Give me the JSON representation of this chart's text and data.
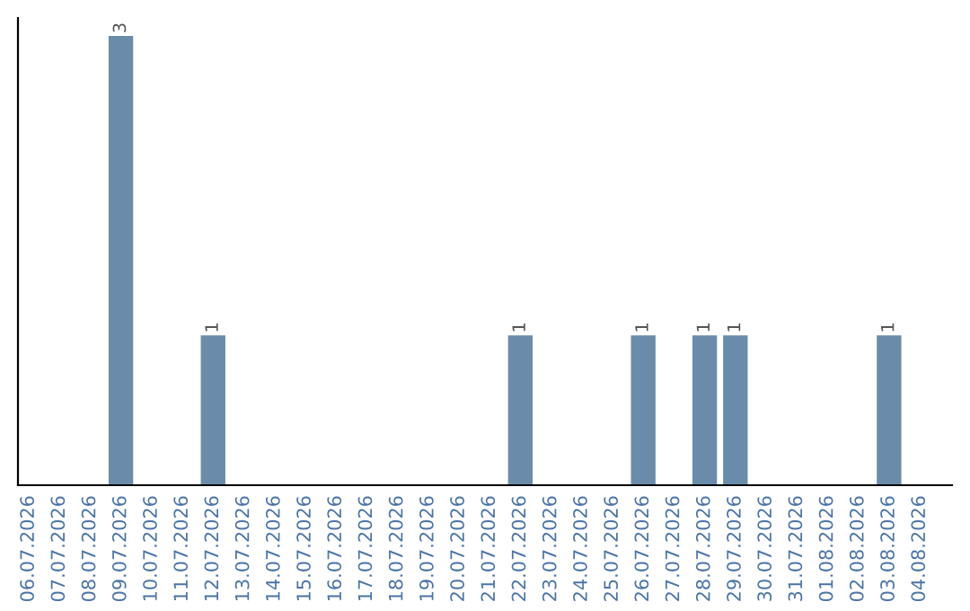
{
  "chart_data": {
    "type": "bar",
    "categories": [
      "06.07.2026",
      "07.07.2026",
      "08.07.2026",
      "09.07.2026",
      "10.07.2026",
      "11.07.2026",
      "12.07.2026",
      "13.07.2026",
      "14.07.2026",
      "15.07.2026",
      "16.07.2026",
      "17.07.2026",
      "18.07.2026",
      "19.07.2026",
      "20.07.2026",
      "21.07.2026",
      "22.07.2026",
      "23.07.2026",
      "24.07.2026",
      "25.07.2026",
      "26.07.2026",
      "27.07.2026",
      "28.07.2026",
      "29.07.2026",
      "30.07.2026",
      "31.07.2026",
      "01.08.2026",
      "02.08.2026",
      "03.08.2026",
      "04.08.2026"
    ],
    "values": [
      0,
      0,
      0,
      3,
      0,
      0,
      1,
      0,
      0,
      0,
      0,
      0,
      0,
      0,
      0,
      0,
      1,
      0,
      0,
      0,
      1,
      0,
      1,
      1,
      0,
      0,
      0,
      0,
      1,
      0
    ],
    "value_labels": [
      null,
      null,
      null,
      "3",
      null,
      null,
      "1",
      null,
      null,
      null,
      null,
      null,
      null,
      null,
      null,
      null,
      "1",
      null,
      null,
      null,
      "1",
      null,
      "1",
      "1",
      null,
      null,
      null,
      null,
      "1",
      null
    ],
    "color": "#6a8caa",
    "tick_labels": "x",
    "grid": false,
    "legend": false
  }
}
